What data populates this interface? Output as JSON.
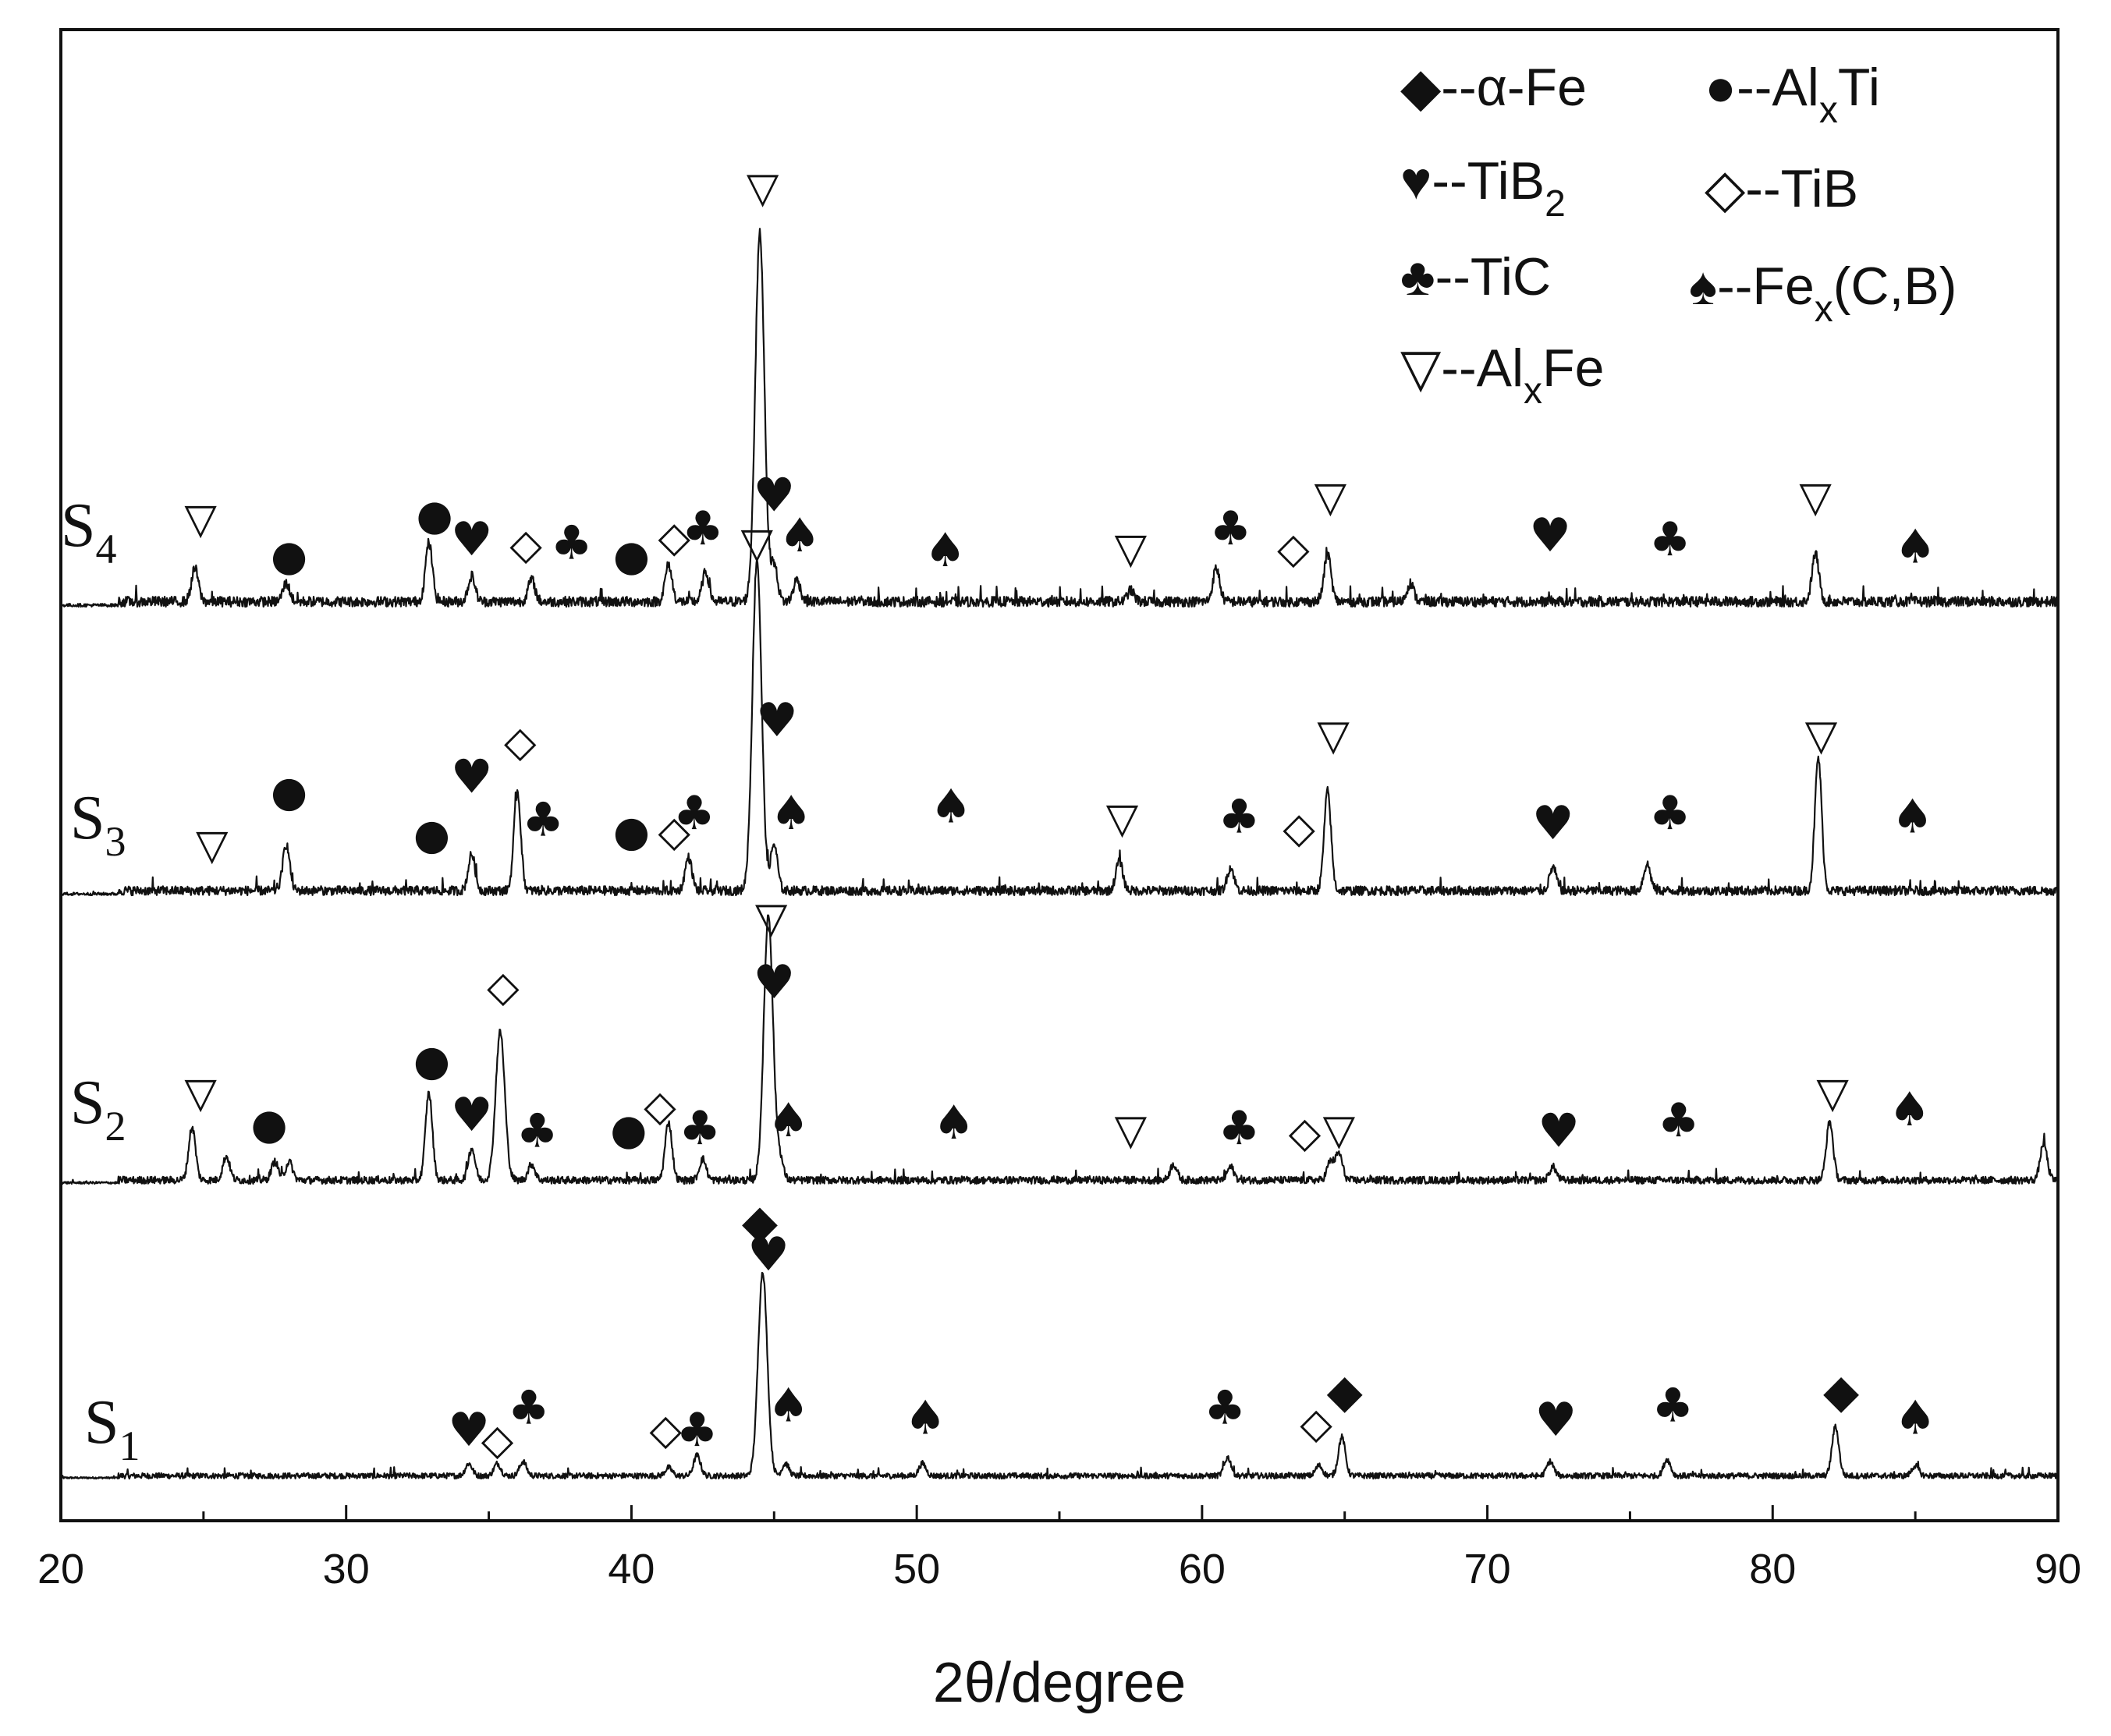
{
  "chart_data": {
    "type": "line",
    "title": "",
    "xlabel": "2θ/degree",
    "ylabel": "",
    "xlim": [
      20,
      90
    ],
    "x_ticks": [
      "20",
      "30",
      "40",
      "50",
      "60",
      "70",
      "80",
      "90"
    ],
    "legend": [
      {
        "phase": "α-Fe",
        "symbol": "diamond-filled",
        "text": "◆--α-Fe"
      },
      {
        "phase": "AlxTi",
        "symbol": "circle-filled",
        "text": "●--Al",
        "sub": "x",
        "tail": "Ti"
      },
      {
        "phase": "TiB2",
        "symbol": "heart",
        "text": "♥--TiB",
        "sub": "2",
        "tail": ""
      },
      {
        "phase": "TiB",
        "symbol": "diamond-open",
        "text": "◇--TiB"
      },
      {
        "phase": "TiC",
        "symbol": "club",
        "text": "♣--TiC"
      },
      {
        "phase": "Fex(C,B)",
        "symbol": "spade",
        "text": "♠--Fe",
        "sub": "x",
        "tail": "(C,B)"
      },
      {
        "phase": "AlxFe",
        "symbol": "triangle-open",
        "text": "▽--Al",
        "sub": "x",
        "tail": "Fe"
      }
    ],
    "series": [
      {
        "name": "S1",
        "label_main": "S",
        "label_sub": "1",
        "peaks": [
          [
            34.3,
            0.06
          ],
          [
            35.3,
            0.06
          ],
          [
            36.2,
            0.07
          ],
          [
            41.3,
            0.04
          ],
          [
            42.3,
            0.1
          ],
          [
            44.6,
            1.0
          ],
          [
            45.4,
            0.06
          ],
          [
            50.2,
            0.06
          ],
          [
            60.9,
            0.09
          ],
          [
            64.1,
            0.05
          ],
          [
            64.9,
            0.19
          ],
          [
            72.2,
            0.07
          ],
          [
            76.3,
            0.08
          ],
          [
            82.2,
            0.24
          ],
          [
            85.0,
            0.05
          ]
        ],
        "markers": [
          {
            "symbol": "heart",
            "x": 34.3,
            "y": 0.16
          },
          {
            "symbol": "diamond-open",
            "x": 35.3,
            "y": 0.12
          },
          {
            "symbol": "club",
            "x": 36.4,
            "y": 0.27
          },
          {
            "symbol": "diamond-open",
            "x": 41.2,
            "y": 0.17
          },
          {
            "symbol": "club",
            "x": 42.3,
            "y": 0.16
          },
          {
            "symbol": "diamond-filled",
            "x": 44.5,
            "y": 1.18
          },
          {
            "symbol": "heart",
            "x": 44.8,
            "y": 1.02
          },
          {
            "symbol": "spade",
            "x": 45.5,
            "y": 0.28
          },
          {
            "symbol": "spade",
            "x": 50.3,
            "y": 0.22
          },
          {
            "symbol": "club",
            "x": 60.8,
            "y": 0.27
          },
          {
            "symbol": "diamond-open",
            "x": 64.0,
            "y": 0.2
          },
          {
            "symbol": "diamond-filled",
            "x": 65.0,
            "y": 0.35
          },
          {
            "symbol": "heart",
            "x": 72.4,
            "y": 0.21
          },
          {
            "symbol": "club",
            "x": 76.5,
            "y": 0.28
          },
          {
            "symbol": "diamond-filled",
            "x": 82.4,
            "y": 0.35
          },
          {
            "symbol": "spade",
            "x": 85.0,
            "y": 0.22
          }
        ]
      },
      {
        "name": "S2",
        "label_main": "S",
        "label_sub": "2",
        "peaks": [
          [
            24.6,
            0.2
          ],
          [
            25.8,
            0.09
          ],
          [
            27.5,
            0.07
          ],
          [
            28.0,
            0.07
          ],
          [
            32.9,
            0.33
          ],
          [
            34.4,
            0.12
          ],
          [
            35.4,
            0.56
          ],
          [
            36.5,
            0.06
          ],
          [
            41.3,
            0.22
          ],
          [
            42.5,
            0.08
          ],
          [
            44.8,
            1.0
          ],
          [
            45.2,
            0.08
          ],
          [
            59.0,
            0.06
          ],
          [
            61.0,
            0.05
          ],
          [
            64.5,
            0.07
          ],
          [
            64.8,
            0.1
          ],
          [
            72.3,
            0.05
          ],
          [
            82.0,
            0.22
          ],
          [
            89.5,
            0.14
          ]
        ],
        "markers": [
          {
            "symbol": "triangle-open",
            "x": 24.9,
            "y": 0.29
          },
          {
            "symbol": "circle-filled",
            "x": 27.3,
            "y": 0.17
          },
          {
            "symbol": "circle-filled",
            "x": 33.0,
            "y": 0.41
          },
          {
            "symbol": "heart",
            "x": 34.4,
            "y": 0.2
          },
          {
            "symbol": "diamond-open",
            "x": 35.5,
            "y": 0.69
          },
          {
            "symbol": "club",
            "x": 36.7,
            "y": 0.14
          },
          {
            "symbol": "circle-filled",
            "x": 39.9,
            "y": 0.15
          },
          {
            "symbol": "diamond-open",
            "x": 41.0,
            "y": 0.24
          },
          {
            "symbol": "club",
            "x": 42.4,
            "y": 0.15
          },
          {
            "symbol": "heart",
            "x": 45.0,
            "y": 0.7
          },
          {
            "symbol": "triangle-open",
            "x": 44.9,
            "y": 0.95
          },
          {
            "symbol": "spade",
            "x": 45.5,
            "y": 0.18
          },
          {
            "symbol": "spade",
            "x": 51.3,
            "y": 0.17
          },
          {
            "symbol": "triangle-open",
            "x": 57.5,
            "y": 0.15
          },
          {
            "symbol": "club",
            "x": 61.3,
            "y": 0.15
          },
          {
            "symbol": "diamond-open",
            "x": 63.6,
            "y": 0.14
          },
          {
            "symbol": "triangle-open",
            "x": 64.8,
            "y": 0.15
          },
          {
            "symbol": "heart",
            "x": 72.5,
            "y": 0.14
          },
          {
            "symbol": "club",
            "x": 76.7,
            "y": 0.18
          },
          {
            "symbol": "triangle-open",
            "x": 82.1,
            "y": 0.29
          },
          {
            "symbol": "spade",
            "x": 84.8,
            "y": 0.22
          }
        ]
      },
      {
        "name": "S3",
        "label_main": "S",
        "label_sub": "3",
        "peaks": [
          [
            27.9,
            0.14
          ],
          [
            34.4,
            0.11
          ],
          [
            36.0,
            0.3
          ],
          [
            42.0,
            0.1
          ],
          [
            44.4,
            1.0
          ],
          [
            45.0,
            0.14
          ],
          [
            57.1,
            0.09
          ],
          [
            61.0,
            0.07
          ],
          [
            64.4,
            0.3
          ],
          [
            72.3,
            0.07
          ],
          [
            75.6,
            0.08
          ],
          [
            81.6,
            0.4
          ]
        ],
        "markers": [
          {
            "symbol": "triangle-open",
            "x": 25.3,
            "y": 0.11
          },
          {
            "symbol": "circle-filled",
            "x": 28.0,
            "y": 0.27
          },
          {
            "symbol": "circle-filled",
            "x": 33.0,
            "y": 0.14
          },
          {
            "symbol": "heart",
            "x": 34.4,
            "y": 0.31
          },
          {
            "symbol": "diamond-open",
            "x": 36.1,
            "y": 0.42
          },
          {
            "symbol": "club",
            "x": 36.9,
            "y": 0.18
          },
          {
            "symbol": "circle-filled",
            "x": 40.0,
            "y": 0.15
          },
          {
            "symbol": "diamond-open",
            "x": 41.5,
            "y": 0.15
          },
          {
            "symbol": "club",
            "x": 42.2,
            "y": 0.2
          },
          {
            "symbol": "triangle-open",
            "x": 44.4,
            "y": 1.02
          },
          {
            "symbol": "heart",
            "x": 45.1,
            "y": 0.48
          },
          {
            "symbol": "spade",
            "x": 45.6,
            "y": 0.2
          },
          {
            "symbol": "spade",
            "x": 51.2,
            "y": 0.22
          },
          {
            "symbol": "triangle-open",
            "x": 57.2,
            "y": 0.19
          },
          {
            "symbol": "club",
            "x": 61.3,
            "y": 0.19
          },
          {
            "symbol": "diamond-open",
            "x": 63.4,
            "y": 0.16
          },
          {
            "symbol": "triangle-open",
            "x": 64.6,
            "y": 0.44
          },
          {
            "symbol": "heart",
            "x": 72.3,
            "y": 0.17
          },
          {
            "symbol": "club",
            "x": 76.4,
            "y": 0.2
          },
          {
            "symbol": "triangle-open",
            "x": 81.7,
            "y": 0.44
          },
          {
            "symbol": "spade",
            "x": 84.9,
            "y": 0.19
          }
        ]
      },
      {
        "name": "S4",
        "label_main": "S",
        "label_sub": "4",
        "peaks": [
          [
            24.7,
            0.09
          ],
          [
            27.9,
            0.05
          ],
          [
            32.9,
            0.16
          ],
          [
            34.4,
            0.07
          ],
          [
            36.5,
            0.06
          ],
          [
            41.3,
            0.1
          ],
          [
            42.6,
            0.08
          ],
          [
            44.5,
            1.0
          ],
          [
            45.0,
            0.1
          ],
          [
            45.8,
            0.06
          ],
          [
            57.5,
            0.03
          ],
          [
            60.5,
            0.09
          ],
          [
            64.4,
            0.13
          ],
          [
            67.3,
            0.05
          ],
          [
            81.5,
            0.13
          ]
        ],
        "markers": [
          {
            "symbol": "triangle-open",
            "x": 24.9,
            "y": 0.2
          },
          {
            "symbol": "circle-filled",
            "x": 28.0,
            "y": 0.1
          },
          {
            "symbol": "circle-filled",
            "x": 33.1,
            "y": 0.21
          },
          {
            "symbol": "heart",
            "x": 34.4,
            "y": 0.14
          },
          {
            "symbol": "diamond-open",
            "x": 36.3,
            "y": 0.13
          },
          {
            "symbol": "club",
            "x": 37.9,
            "y": 0.13
          },
          {
            "symbol": "circle-filled",
            "x": 40.0,
            "y": 0.1
          },
          {
            "symbol": "diamond-open",
            "x": 41.5,
            "y": 0.15
          },
          {
            "symbol": "club",
            "x": 42.5,
            "y": 0.17
          },
          {
            "symbol": "triangle-open",
            "x": 44.6,
            "y": 1.1
          },
          {
            "symbol": "heart",
            "x": 45.0,
            "y": 0.26
          },
          {
            "symbol": "spade",
            "x": 45.9,
            "y": 0.15
          },
          {
            "symbol": "spade",
            "x": 51.0,
            "y": 0.11
          },
          {
            "symbol": "triangle-open",
            "x": 57.5,
            "y": 0.12
          },
          {
            "symbol": "club",
            "x": 61.0,
            "y": 0.17
          },
          {
            "symbol": "diamond-open",
            "x": 63.2,
            "y": 0.12
          },
          {
            "symbol": "triangle-open",
            "x": 64.5,
            "y": 0.26
          },
          {
            "symbol": "heart",
            "x": 72.2,
            "y": 0.15
          },
          {
            "symbol": "club",
            "x": 76.4,
            "y": 0.14
          },
          {
            "symbol": "triangle-open",
            "x": 81.5,
            "y": 0.26
          },
          {
            "symbol": "spade",
            "x": 85.0,
            "y": 0.12
          }
        ]
      }
    ]
  },
  "symbol_glyphs": {
    "diamond-filled": "◆",
    "circle-filled": "●",
    "heart": "♥",
    "diamond-open": "◇",
    "club": "♣",
    "spade": "♠",
    "triangle-open": "▽"
  }
}
